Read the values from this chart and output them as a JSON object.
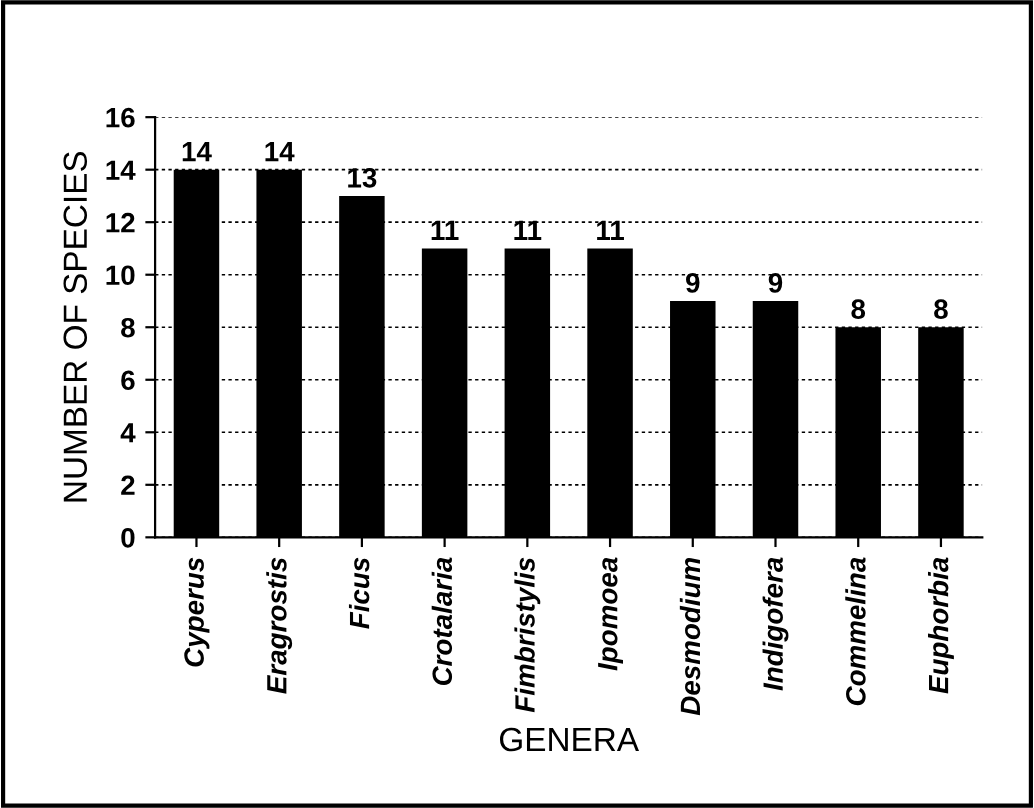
{
  "chart_data": {
    "type": "bar",
    "xlabel": "GENERA",
    "ylabel": "NUMBER OF SPECIES",
    "categories": [
      "Cyperus",
      "Eragrostis",
      "Ficus",
      "Crotalaria",
      "Fimbristylis",
      "Ipomoea",
      "Desmodium",
      "Indigofera",
      "Commelina",
      "Euphorbia"
    ],
    "values": [
      14,
      14,
      13,
      11,
      11,
      11,
      9,
      9,
      8,
      8
    ],
    "color": "#000000",
    "ylim": [
      0,
      16
    ],
    "yticks": [
      0,
      2,
      4,
      6,
      8,
      10,
      12,
      14,
      16
    ],
    "grid": "y",
    "data_labels": true
  }
}
